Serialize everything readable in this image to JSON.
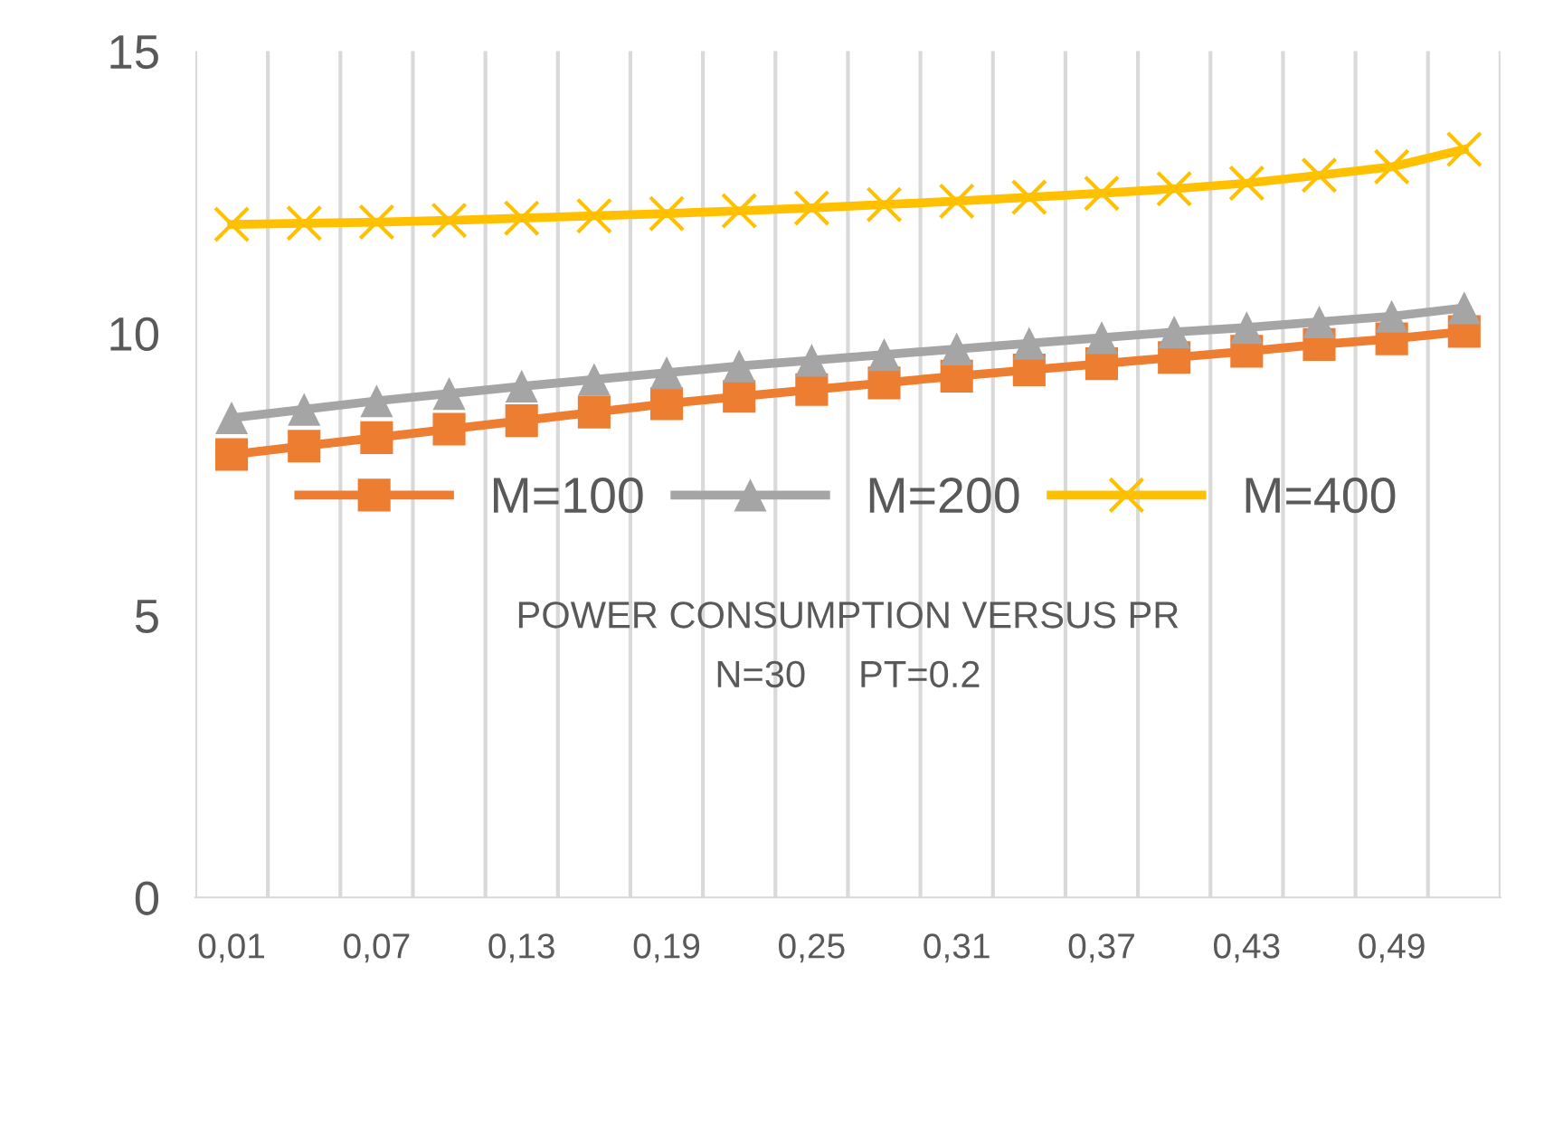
{
  "chart_data": {
    "type": "line",
    "title": "POWER CONSUMPTION VERSUS PR",
    "subtitle": "N=30     PT=0.2",
    "categories": [
      "0,01",
      null,
      "0,07",
      null,
      "0,13",
      null,
      "0,19",
      null,
      "0,25",
      null,
      "0,31",
      null,
      "0,37",
      null,
      "0,43",
      null,
      "0,49",
      null
    ],
    "series": [
      {
        "name": "M=100",
        "color": "#ed7d31",
        "marker": "square",
        "values": [
          7.85,
          8.0,
          8.15,
          8.3,
          8.45,
          8.6,
          8.75,
          8.88,
          9.0,
          9.12,
          9.24,
          9.35,
          9.46,
          9.57,
          9.68,
          9.8,
          9.9,
          10.03
        ]
      },
      {
        "name": "M=200",
        "color": "#a5a5a5",
        "marker": "triangle",
        "values": [
          8.5,
          8.65,
          8.8,
          8.93,
          9.06,
          9.18,
          9.3,
          9.42,
          9.52,
          9.62,
          9.72,
          9.82,
          9.92,
          10.02,
          10.1,
          10.2,
          10.3,
          10.45
        ]
      },
      {
        "name": "M=400",
        "color": "#ffc000",
        "marker": "cross",
        "values": [
          11.93,
          11.95,
          11.97,
          12.0,
          12.04,
          12.08,
          12.12,
          12.17,
          12.22,
          12.28,
          12.34,
          12.41,
          12.48,
          12.56,
          12.66,
          12.8,
          12.95,
          13.26
        ]
      }
    ],
    "ylim": [
      0,
      15
    ],
    "yticks": [
      0,
      5,
      10,
      15
    ],
    "grid": "x",
    "legend": "center"
  }
}
